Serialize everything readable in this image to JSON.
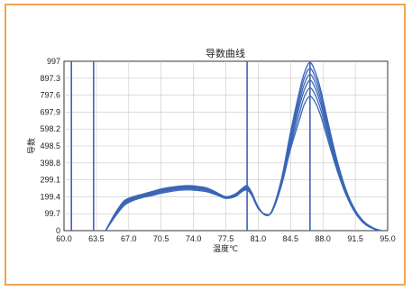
{
  "chart_data": {
    "type": "line",
    "title": "导数曲线",
    "xlabel": "温度℃",
    "ylabel": "导数",
    "xlim": [
      60.0,
      95.0
    ],
    "ylim": [
      0,
      997
    ],
    "x_ticks": [
      "60.0",
      "63.5",
      "67.0",
      "70.5",
      "74.0",
      "77.5",
      "81.0",
      "84.5",
      "88.0",
      "91.5",
      "95.0"
    ],
    "y_ticks": [
      "0",
      "99.7",
      "199.4",
      "299.1",
      "398.8",
      "498.5",
      "598.2",
      "697.9",
      "797.6",
      "897.3",
      "997"
    ],
    "grid": true,
    "colors": {
      "series": "#3a66b5",
      "frame": "#f0a552",
      "grid": "#c8c8c8",
      "vlines": "#3a66b5"
    },
    "vlines_x": [
      60.8,
      63.2,
      79.8,
      86.6
    ],
    "x": [
      64.5,
      65.5,
      66.5,
      67.5,
      68.5,
      69.5,
      70.5,
      71.5,
      72.5,
      73.5,
      74.5,
      75.5,
      76.5,
      77.5,
      78.5,
      79.3,
      79.8,
      80.3,
      81.0,
      81.8,
      82.5,
      83.5,
      84.5,
      85.5,
      86.0,
      86.6,
      87.2,
      87.8,
      88.5,
      89.5,
      90.5,
      91.5,
      92.5,
      93.5,
      94.3
    ],
    "series": [
      {
        "values": [
          0,
          100,
          175,
          200,
          215,
          230,
          245,
          255,
          262,
          265,
          260,
          250,
          225,
          200,
          215,
          250,
          265,
          225,
          140,
          90,
          120,
          300,
          580,
          830,
          930,
          990,
          930,
          820,
          650,
          420,
          240,
          120,
          50,
          15,
          0
        ]
      },
      {
        "values": [
          0,
          95,
          170,
          195,
          210,
          225,
          240,
          250,
          258,
          260,
          255,
          245,
          222,
          198,
          212,
          245,
          258,
          220,
          138,
          92,
          118,
          292,
          560,
          800,
          900,
          955,
          900,
          795,
          630,
          410,
          235,
          118,
          48,
          14,
          0
        ]
      },
      {
        "values": [
          0,
          92,
          165,
          192,
          208,
          222,
          236,
          246,
          254,
          256,
          252,
          242,
          220,
          196,
          210,
          242,
          252,
          218,
          136,
          94,
          116,
          285,
          540,
          770,
          865,
          920,
          868,
          765,
          610,
          400,
          230,
          115,
          46,
          13,
          0
        ]
      },
      {
        "values": [
          0,
          90,
          160,
          188,
          205,
          218,
          232,
          242,
          250,
          252,
          248,
          240,
          218,
          195,
          208,
          240,
          248,
          216,
          134,
          95,
          115,
          278,
          520,
          740,
          830,
          885,
          835,
          738,
          590,
          390,
          225,
          112,
          44,
          12,
          0
        ]
      },
      {
        "values": [
          0,
          85,
          155,
          183,
          200,
          212,
          226,
          236,
          244,
          246,
          242,
          234,
          214,
          192,
          204,
          236,
          242,
          212,
          132,
          96,
          113,
          270,
          500,
          700,
          790,
          840,
          795,
          705,
          565,
          375,
          218,
          108,
          42,
          11,
          0
        ]
      },
      {
        "values": [
          0,
          80,
          148,
          178,
          195,
          206,
          220,
          230,
          238,
          240,
          236,
          228,
          210,
          190,
          200,
          232,
          238,
          208,
          130,
          97,
          112,
          262,
          480,
          660,
          745,
          790,
          752,
          670,
          540,
          360,
          210,
          104,
          40,
          10,
          0
        ]
      }
    ]
  }
}
